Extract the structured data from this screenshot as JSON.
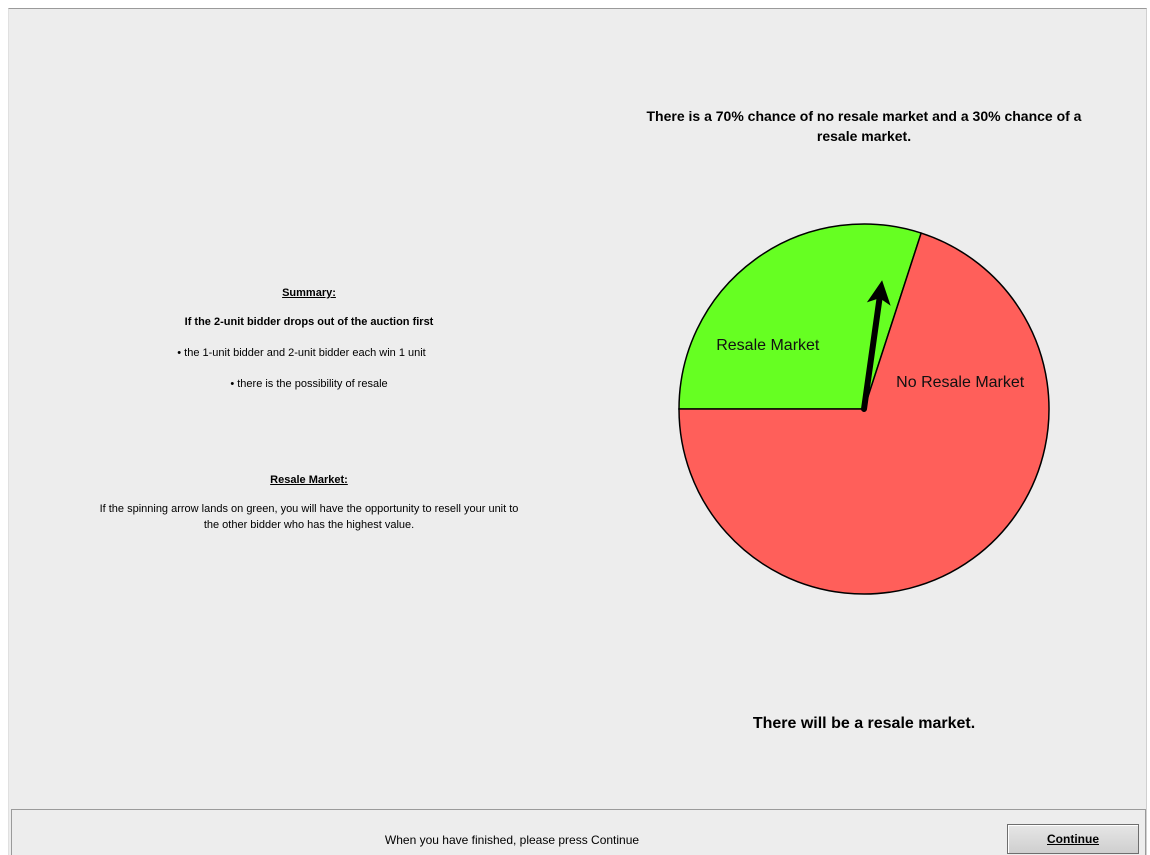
{
  "summary": {
    "heading": "Summary:",
    "condition": "If the 2-unit bidder drops out of the auction first",
    "bullets": [
      "•  the 1-unit bidder and 2-unit bidder each win 1 unit",
      "•  there is the possibility of resale"
    ]
  },
  "resale": {
    "heading": "Resale Market:",
    "line1": "If the spinning arrow lands on green, you will have the opportunity to resell your unit to",
    "line2": "the other bidder who has the highest value."
  },
  "chart_title": {
    "line1": "There is a 70% chance of no resale market and a 30% chance of a",
    "line2": "resale market."
  },
  "chart_data": {
    "type": "pie",
    "categories": [
      "Resale Market",
      "No Resale Market"
    ],
    "values": [
      30,
      70
    ],
    "colors": [
      "#66ff22",
      "#ff5f5a"
    ],
    "arrow_angle_deg": 8
  },
  "result": "There will be a resale market.",
  "footer": {
    "message": "When you have finished, please press Continue",
    "continue_label": "Continue"
  }
}
